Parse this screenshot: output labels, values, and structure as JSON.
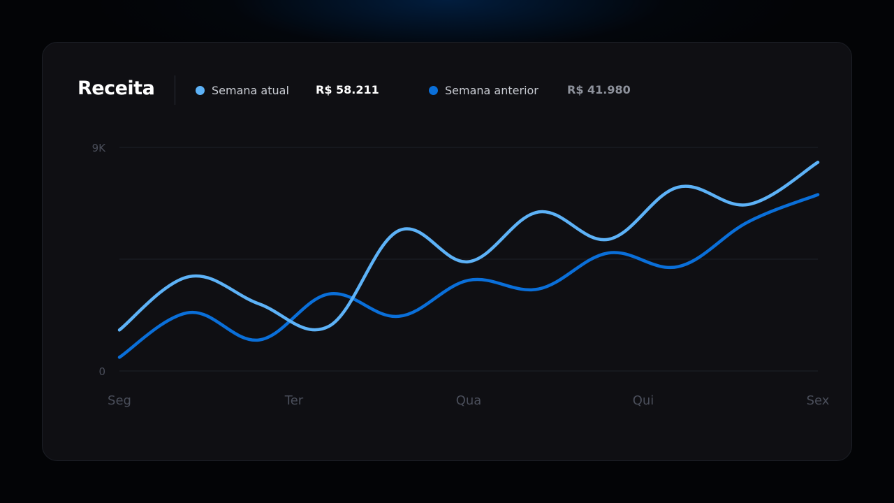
{
  "card": {
    "title": "Receita"
  },
  "legend": [
    {
      "name": "Semana atual",
      "value": "R$ 58.211",
      "color": "#5db2f7",
      "value_color": "#ffffff"
    },
    {
      "name": "Semana anterior",
      "value": "R$ 41.980",
      "color": "#0a6fd9",
      "value_color": "#8e929c"
    }
  ],
  "chart_data": {
    "type": "line",
    "categories": [
      "Seg",
      "Ter",
      "Qua",
      "Qui",
      "Sex"
    ],
    "x": [
      0,
      0.4,
      0.8,
      1.2,
      1.6,
      2.0,
      2.4,
      2.8,
      3.2,
      3.6,
      4.0
    ],
    "y_tick_labels": [
      "0",
      "9K"
    ],
    "ylim": [
      0,
      9000
    ],
    "grid": true,
    "smooth": true,
    "series": [
      {
        "name": "Semana atual",
        "color": "#5db2f7",
        "values": [
          1650,
          3800,
          2700,
          1800,
          5650,
          4400,
          6400,
          5300,
          7400,
          6700,
          8400
        ]
      },
      {
        "name": "Semana anterior",
        "color": "#0a6fd9",
        "values": [
          550,
          2350,
          1250,
          3100,
          2200,
          3650,
          3300,
          4750,
          4200,
          6000,
          7100
        ]
      }
    ]
  }
}
